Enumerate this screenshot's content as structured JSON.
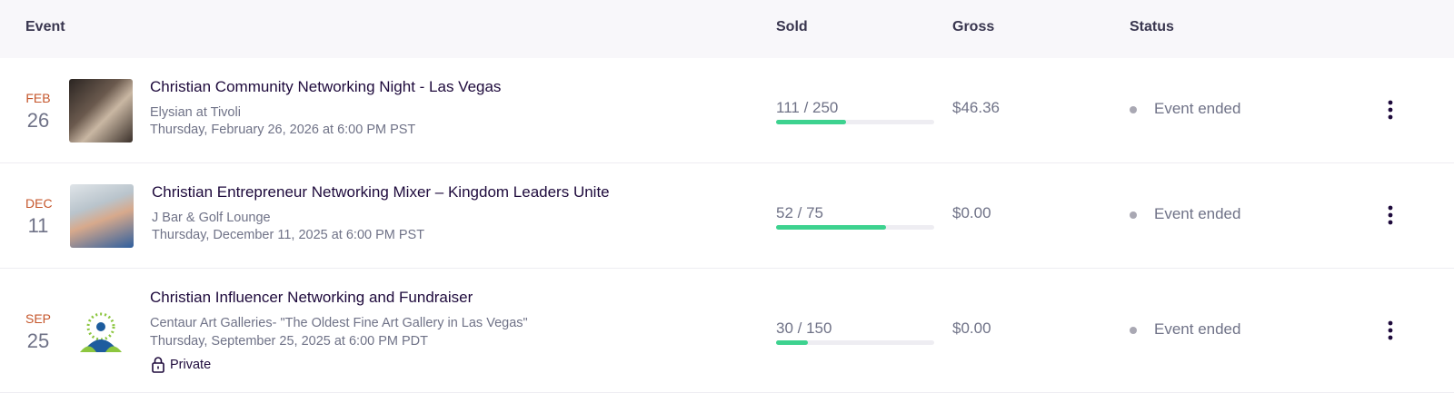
{
  "header": {
    "event": "Event",
    "sold": "Sold",
    "gross": "Gross",
    "status": "Status"
  },
  "rows": [
    {
      "month": "FEB",
      "day": "26",
      "title": "Christian Community Networking Night - Las Vegas",
      "venue": "Elysian at Tivoli",
      "datetime": "Thursday, February 26, 2026 at 6:00 PM PST",
      "sold": {
        "count": 111,
        "capacity": 250,
        "label": "111 / 250"
      },
      "gross": "$46.36",
      "status": "Event ended"
    },
    {
      "month": "DEC",
      "day": "11",
      "title": "Christian Entrepreneur Networking Mixer – Kingdom Leaders Unite",
      "venue": "J Bar & Golf Lounge",
      "datetime": "Thursday, December 11, 2025 at 6:00 PM PST",
      "sold": {
        "count": 52,
        "capacity": 75,
        "label": "52 / 75"
      },
      "gross": "$0.00",
      "status": "Event ended"
    },
    {
      "month": "SEP",
      "day": "25",
      "title": "Christian Influencer Networking and Fundraiser",
      "venue": "Centaur Art Galleries- \"The Oldest Fine Art Gallery in Las Vegas\"",
      "datetime": "Thursday, September 25, 2025 at 6:00 PM PDT",
      "private": "Private",
      "sold": {
        "count": 30,
        "capacity": 150,
        "label": "30 / 150"
      },
      "gross": "$0.00",
      "status": "Event ended"
    }
  ]
}
